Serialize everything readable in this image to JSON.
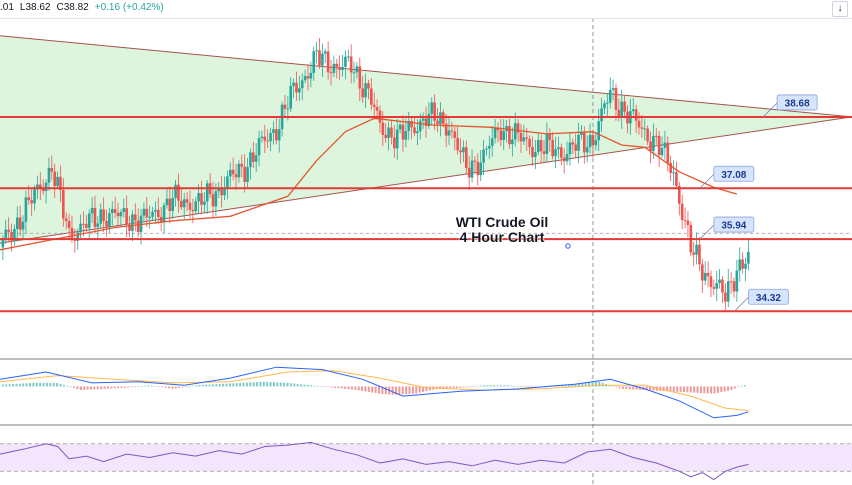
{
  "header": {
    "ohlc_partial": ".01",
    "low": "L38.62",
    "close": "C38.82",
    "change": "+0.16 (+0.42%)",
    "down_arrow_icon": "arrow-down-icon",
    "collapse_icon": "chevron-left-icon"
  },
  "chart_data": [
    {
      "type": "candlestick",
      "title": "WTI Crude Oil",
      "subtitle": "4 Hour Chart",
      "y_range": [
        33.9,
        40.9
      ],
      "support_resistance_levels": [
        38.68,
        37.08,
        35.94,
        34.32
      ],
      "level_labels": [
        "38.68",
        "37.08",
        "35.94",
        "34.32"
      ],
      "triangle": {
        "upper_trendline": [
          [
            0,
            40.5
          ],
          [
            148,
            38.68
          ]
        ],
        "lower_trendline": [
          [
            0,
            35.85
          ],
          [
            148,
            38.68
          ]
        ]
      },
      "moving_average": [
        [
          0,
          35.7
        ],
        [
          10,
          35.95
        ],
        [
          20,
          36.2
        ],
        [
          30,
          36.35
        ],
        [
          40,
          36.45
        ],
        [
          50,
          36.9
        ],
        [
          55,
          37.7
        ],
        [
          60,
          38.35
        ],
        [
          65,
          38.65
        ],
        [
          75,
          38.5
        ],
        [
          85,
          38.45
        ],
        [
          95,
          38.3
        ],
        [
          103,
          38.35
        ],
        [
          108,
          38.05
        ],
        [
          112,
          38.0
        ],
        [
          118,
          37.45
        ],
        [
          124,
          37.1
        ],
        [
          128,
          36.95
        ]
      ],
      "price_path": [
        [
          0,
          35.75
        ],
        [
          5,
          36.7
        ],
        [
          9,
          37.55
        ],
        [
          12,
          36.05
        ],
        [
          18,
          36.5
        ],
        [
          25,
          36.35
        ],
        [
          30,
          36.8
        ],
        [
          35,
          36.75
        ],
        [
          42,
          37.5
        ],
        [
          48,
          38.45
        ],
        [
          51,
          39.25
        ],
        [
          55,
          40.0
        ],
        [
          58,
          39.85
        ],
        [
          61,
          39.8
        ],
        [
          64,
          39.25
        ],
        [
          66,
          38.4
        ],
        [
          70,
          38.25
        ],
        [
          74,
          38.7
        ],
        [
          78,
          38.5
        ],
        [
          81,
          37.5
        ],
        [
          84,
          37.8
        ],
        [
          87,
          38.45
        ],
        [
          92,
          38.05
        ],
        [
          98,
          37.9
        ],
        [
          103,
          38.2
        ],
        [
          106,
          39.2
        ],
        [
          110,
          38.6
        ],
        [
          114,
          38.1
        ],
        [
          117,
          37.45
        ],
        [
          120,
          35.7
        ],
        [
          124,
          34.9
        ],
        [
          126,
          34.65
        ],
        [
          128,
          35.3
        ],
        [
          130,
          35.45
        ]
      ],
      "last_price": 38.82,
      "x_marker": 103
    },
    {
      "type": "macd",
      "y_range": [
        -1.6,
        1.1
      ],
      "macd_line": [
        [
          0,
          0.3
        ],
        [
          8,
          0.6
        ],
        [
          16,
          0.15
        ],
        [
          24,
          0.2
        ],
        [
          32,
          0.05
        ],
        [
          40,
          0.35
        ],
        [
          48,
          0.8
        ],
        [
          56,
          0.7
        ],
        [
          63,
          0.3
        ],
        [
          70,
          -0.4
        ],
        [
          80,
          -0.2
        ],
        [
          90,
          -0.1
        ],
        [
          100,
          0.1
        ],
        [
          106,
          0.3
        ],
        [
          112,
          -0.1
        ],
        [
          118,
          -0.6
        ],
        [
          124,
          -1.3
        ],
        [
          128,
          -1.2
        ],
        [
          130,
          -1.05
        ]
      ],
      "signal_line": [
        [
          0,
          0.2
        ],
        [
          10,
          0.45
        ],
        [
          20,
          0.3
        ],
        [
          30,
          0.15
        ],
        [
          40,
          0.2
        ],
        [
          50,
          0.6
        ],
        [
          58,
          0.65
        ],
        [
          66,
          0.35
        ],
        [
          74,
          -0.05
        ],
        [
          84,
          -0.15
        ],
        [
          94,
          -0.1
        ],
        [
          104,
          0.05
        ],
        [
          112,
          0.05
        ],
        [
          120,
          -0.4
        ],
        [
          126,
          -0.9
        ],
        [
          130,
          -1.0
        ]
      ],
      "histogram": [
        [
          2,
          0.1
        ],
        [
          6,
          0.15
        ],
        [
          10,
          0.15
        ],
        [
          14,
          -0.15
        ],
        [
          18,
          -0.1
        ],
        [
          22,
          -0.05
        ],
        [
          26,
          0.05
        ],
        [
          30,
          -0.1
        ],
        [
          34,
          0.05
        ],
        [
          38,
          0.1
        ],
        [
          42,
          0.15
        ],
        [
          46,
          0.2
        ],
        [
          50,
          0.15
        ],
        [
          54,
          0.05
        ],
        [
          58,
          -0.05
        ],
        [
          62,
          -0.15
        ],
        [
          66,
          -0.3
        ],
        [
          68,
          -0.35
        ],
        [
          72,
          -0.3
        ],
        [
          76,
          -0.1
        ],
        [
          80,
          -0.05
        ],
        [
          84,
          0.05
        ],
        [
          88,
          0.05
        ],
        [
          92,
          -0.05
        ],
        [
          96,
          0.05
        ],
        [
          100,
          0.1
        ],
        [
          104,
          0.2
        ],
        [
          108,
          -0.1
        ],
        [
          112,
          -0.15
        ],
        [
          116,
          -0.2
        ],
        [
          120,
          -0.25
        ],
        [
          124,
          -0.3
        ],
        [
          127,
          -0.15
        ],
        [
          129,
          0.05
        ]
      ]
    },
    {
      "type": "rsi",
      "y_range": [
        10,
        90
      ],
      "levels": [
        70,
        30
      ],
      "values": [
        [
          0,
          55
        ],
        [
          4,
          62
        ],
        [
          8,
          70
        ],
        [
          10,
          66
        ],
        [
          12,
          48
        ],
        [
          15,
          52
        ],
        [
          18,
          44
        ],
        [
          22,
          55
        ],
        [
          26,
          50
        ],
        [
          30,
          57
        ],
        [
          34,
          52
        ],
        [
          38,
          60
        ],
        [
          42,
          55
        ],
        [
          46,
          66
        ],
        [
          50,
          68
        ],
        [
          54,
          72
        ],
        [
          58,
          62
        ],
        [
          62,
          54
        ],
        [
          66,
          42
        ],
        [
          70,
          48
        ],
        [
          74,
          40
        ],
        [
          78,
          44
        ],
        [
          82,
          38
        ],
        [
          86,
          46
        ],
        [
          90,
          40
        ],
        [
          94,
          46
        ],
        [
          98,
          42
        ],
        [
          102,
          58
        ],
        [
          106,
          62
        ],
        [
          110,
          50
        ],
        [
          114,
          42
        ],
        [
          118,
          30
        ],
        [
          120,
          22
        ],
        [
          122,
          28
        ],
        [
          124,
          18
        ],
        [
          126,
          30
        ],
        [
          128,
          36
        ],
        [
          130,
          40
        ]
      ]
    }
  ],
  "colors": {
    "level_line": "#e53935",
    "triangle_fill": "#d7f2d7",
    "triangle_edge": "#a6534c",
    "ma_line": "#e4572e",
    "bull": "#26a69a",
    "bear": "#ef5350",
    "macd_line": "#2962ff",
    "signal_line": "#ffb74d",
    "rsi_line": "#7e57c2",
    "rsi_band": "#f3e5fc",
    "label_fill": "#d6e4ff",
    "label_text": "#1c3b8c"
  }
}
